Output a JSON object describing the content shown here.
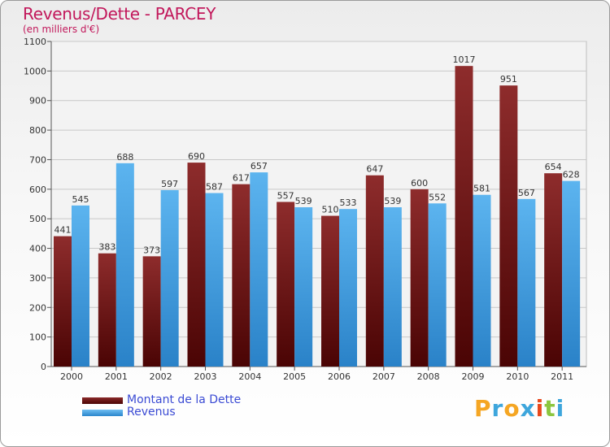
{
  "chart_data": {
    "type": "bar",
    "title": "Revenus/Dette - PARCEY",
    "subtitle": "(en milliers d'€)",
    "categories": [
      "2000",
      "2001",
      "2002",
      "2003",
      "2004",
      "2005",
      "2006",
      "2007",
      "2008",
      "2009",
      "2010",
      "2011"
    ],
    "series": [
      {
        "name": "Montant de la Dette",
        "color": "#7a1a1a",
        "values": [
          441,
          383,
          373,
          690,
          617,
          557,
          510,
          647,
          600,
          1017,
          951,
          654
        ]
      },
      {
        "name": "Revenus",
        "color": "#4ba6e8",
        "values": [
          545,
          688,
          597,
          587,
          657,
          539,
          533,
          539,
          552,
          581,
          567,
          628
        ]
      }
    ],
    "ylim": [
      0,
      1100
    ],
    "yticks": [
      0,
      100,
      200,
      300,
      400,
      500,
      600,
      700,
      800,
      900,
      1000,
      1100
    ],
    "grid": true,
    "legend_position": "bottom-left"
  },
  "branding": {
    "logo_letters": [
      "P",
      "r",
      "o",
      "x",
      "i",
      "t",
      "i"
    ],
    "logo_colors": [
      "#f5a623",
      "#3ea6dc",
      "#f5a623",
      "#3ea6dc",
      "#e8491d",
      "#8cc63f",
      "#3ea6dc"
    ]
  }
}
